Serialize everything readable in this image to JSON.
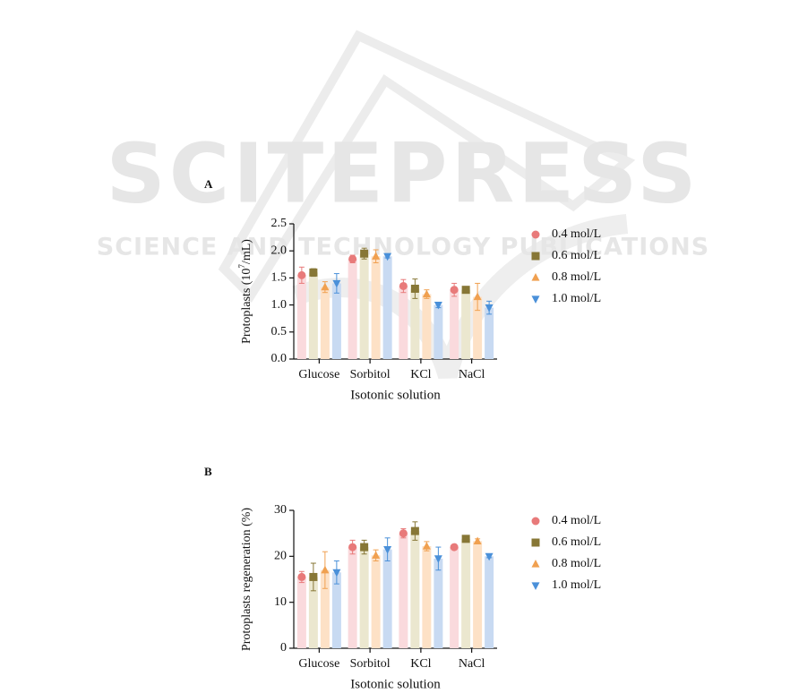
{
  "watermark": {
    "title": "SCITEPRESS",
    "subtitle": "SCIENCE AND TECHNOLOGY PUBLICATIONS"
  },
  "chart_data": [
    {
      "type": "bar",
      "panel": "A",
      "ylabel_parts": [
        "Protoplasts (10",
        "7",
        "/mL)"
      ],
      "xlabel": "Isotonic solution",
      "categories": [
        "Glucose",
        "Sorbitol",
        "KCl",
        "NaCl"
      ],
      "ylim": [
        0,
        2.5
      ],
      "yticks": [
        {
          "value": 0,
          "label": "0.0"
        },
        0.5,
        {
          "value": 1,
          "label": "1.0"
        },
        1.5,
        {
          "value": 2,
          "label": "2.0"
        },
        2.5
      ],
      "series": [
        {
          "name": "0.4 mol/L",
          "color": "#e87a7a",
          "fill": "#fadadd",
          "marker": "circle",
          "values": [
            1.55,
            1.85,
            1.35,
            1.28
          ],
          "errors": [
            0.15,
            0.07,
            0.12,
            0.12
          ]
        },
        {
          "name": "0.6 mol/L",
          "color": "#877736",
          "fill": "#ebe7cf",
          "marker": "square",
          "values": [
            1.6,
            1.95,
            1.3,
            1.28
          ],
          "errors": [
            0.07,
            0.1,
            0.18,
            0.03
          ]
        },
        {
          "name": "0.8 mol/L",
          "color": "#f0a050",
          "fill": "#fde1c6",
          "marker": "triangle",
          "values": [
            1.33,
            1.9,
            1.2,
            1.15
          ],
          "errors": [
            0.1,
            0.12,
            0.08,
            0.25
          ]
        },
        {
          "name": "1.0 mol/L",
          "color": "#4a90d9",
          "fill": "#c8daf2",
          "marker": "triangle-down",
          "values": [
            1.4,
            1.9,
            1.0,
            0.95
          ],
          "errors": [
            0.18,
            0.03,
            0.05,
            0.12
          ]
        }
      ]
    },
    {
      "type": "bar",
      "panel": "B",
      "ylabel_parts": [
        "Protoplasts regeneration (%)"
      ],
      "xlabel": "Isotonic solution",
      "categories": [
        "Glucose",
        "Sorbitol",
        "KCl",
        "NaCl"
      ],
      "ylim": [
        0,
        30
      ],
      "yticks": [
        0,
        10,
        20,
        30
      ],
      "series": [
        {
          "name": "0.4 mol/L",
          "color": "#e87a7a",
          "fill": "#fadadd",
          "marker": "circle",
          "values": [
            15.5,
            22,
            25,
            22
          ],
          "errors": [
            1.2,
            1.5,
            1,
            0.3
          ]
        },
        {
          "name": "0.6 mol/L",
          "color": "#877736",
          "fill": "#ebe7cf",
          "marker": "square",
          "values": [
            15.5,
            22,
            25.5,
            23.8
          ],
          "errors": [
            3,
            1.5,
            2,
            0.4
          ]
        },
        {
          "name": "0.8 mol/L",
          "color": "#f0a050",
          "fill": "#fde1c6",
          "marker": "triangle",
          "values": [
            17,
            20.2,
            22.2,
            23.3
          ],
          "errors": [
            4,
            1.2,
            1,
            0.5
          ]
        },
        {
          "name": "1.0 mol/L",
          "color": "#4a90d9",
          "fill": "#c8daf2",
          "marker": "triangle-down",
          "values": [
            16.5,
            21.5,
            19.5,
            20
          ],
          "errors": [
            2.5,
            2.5,
            2.5,
            0.3
          ]
        }
      ]
    }
  ]
}
